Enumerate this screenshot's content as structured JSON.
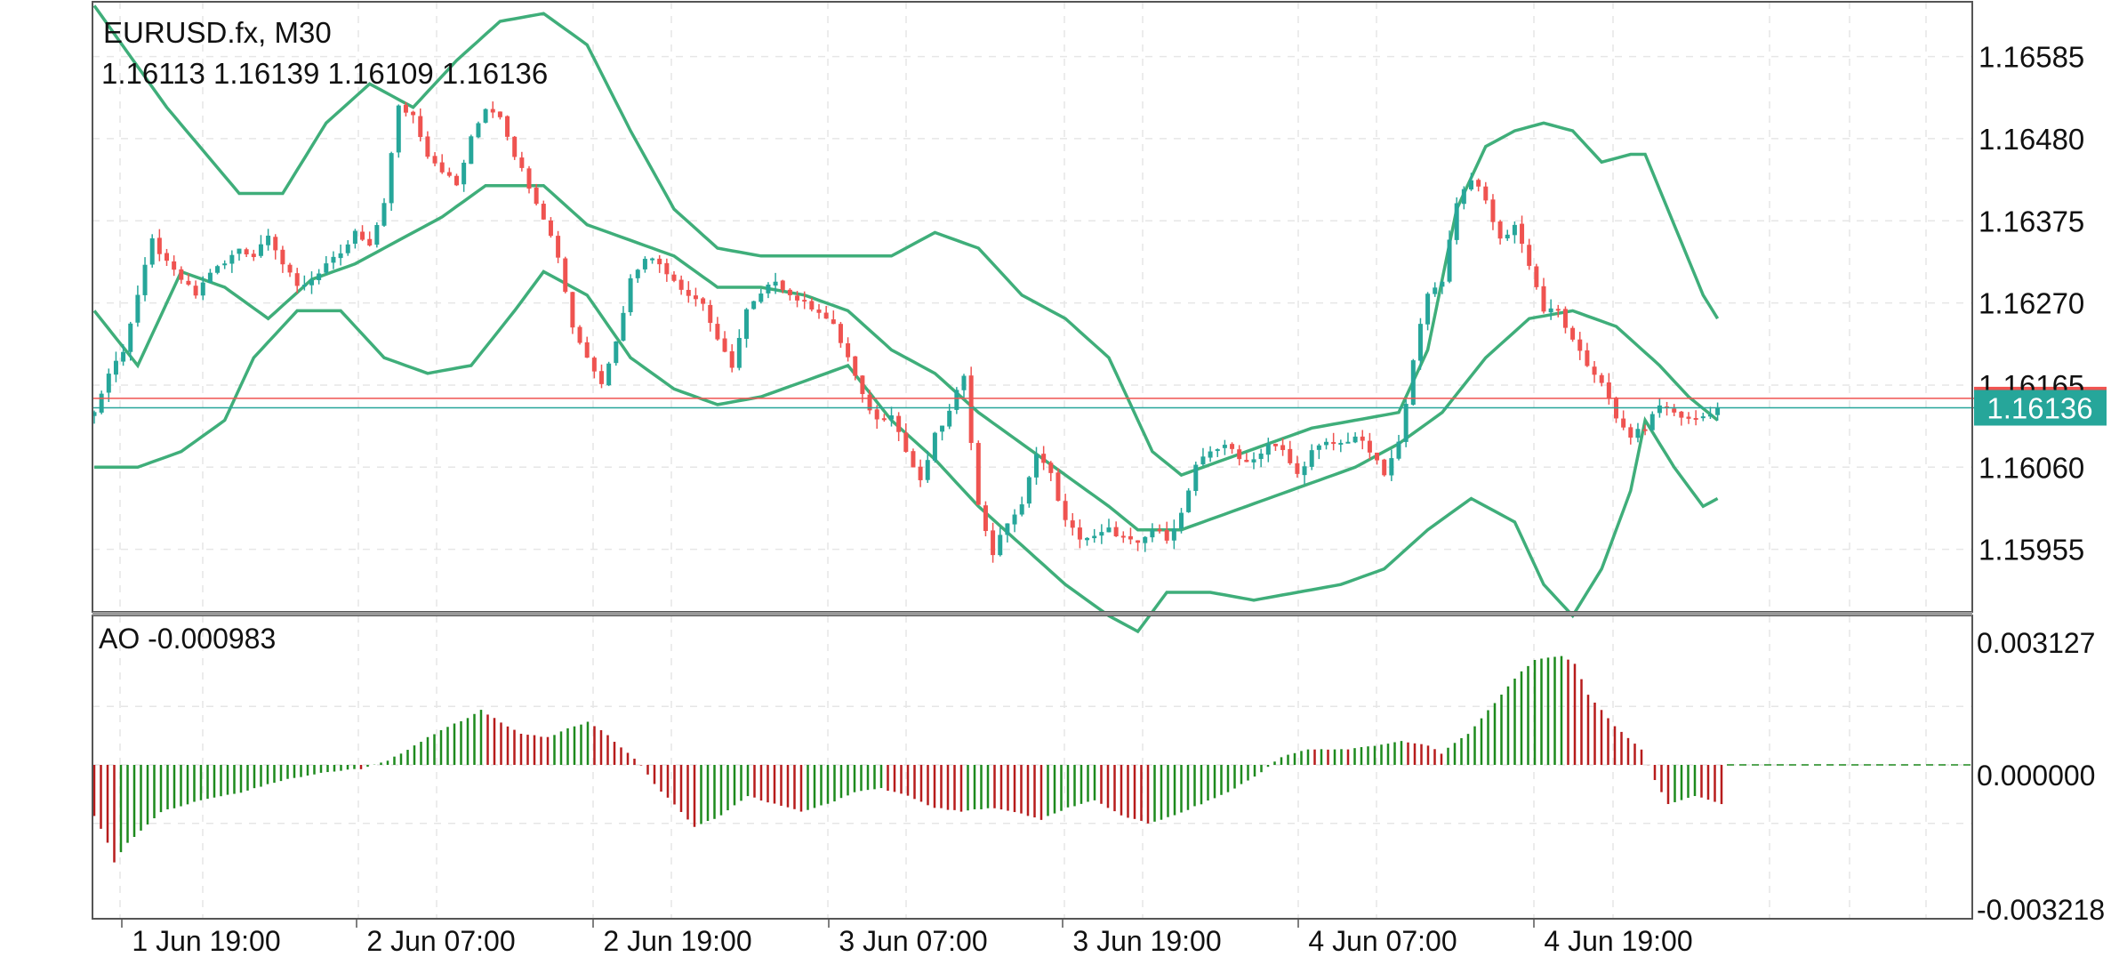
{
  "header": {
    "symbol": "EURUSD.fx, M30",
    "ohlc": "1.16113 1.16139 1.16109 1.16136"
  },
  "ao_header": "AO -0.000983",
  "price_badge": "1.16136",
  "colors": {
    "bull": "#26a69a",
    "bear": "#ef5350",
    "band": "#3fae7a",
    "ao_up": "#1e8a1e",
    "ao_down": "#b71c1c",
    "grid": "#e6e6e6",
    "frame": "#555555",
    "bid_line": "#ef5350",
    "last_line": "#26a69a"
  },
  "chart_data": [
    {
      "type": "candlestick",
      "title": "EURUSD.fx, M30",
      "ylim": [
        1.15875,
        1.16655
      ],
      "y_ticks": [
        "1.16585",
        "1.16480",
        "1.16375",
        "1.16270",
        "1.16165",
        "1.16060",
        "1.15955"
      ],
      "x_ticks": [
        "1 Jun 19:00",
        "2 Jun 07:00",
        "2 Jun 19:00",
        "3 Jun 07:00",
        "3 Jun 19:00",
        "4 Jun 07:00",
        "4 Jun 19:00"
      ],
      "last_price": 1.16136,
      "bid_line": 1.16148,
      "grid": true,
      "ohlc_anchors": [
        [
          0,
          1.1613
        ],
        [
          2,
          1.1618
        ],
        [
          4,
          1.1621
        ],
        [
          6,
          1.1628
        ],
        [
          8,
          1.1635
        ],
        [
          10,
          1.1632
        ],
        [
          12,
          1.163
        ],
        [
          14,
          1.1628
        ],
        [
          16,
          1.1631
        ],
        [
          18,
          1.1632
        ],
        [
          20,
          1.1634
        ],
        [
          22,
          1.1633
        ],
        [
          24,
          1.1636
        ],
        [
          26,
          1.1632
        ],
        [
          28,
          1.1629
        ],
        [
          30,
          1.163
        ],
        [
          32,
          1.1632
        ],
        [
          34,
          1.1633
        ],
        [
          36,
          1.1636
        ],
        [
          38,
          1.1634
        ],
        [
          40,
          1.164
        ],
        [
          42,
          1.1652
        ],
        [
          44,
          1.1651
        ],
        [
          46,
          1.1646
        ],
        [
          48,
          1.1644
        ],
        [
          50,
          1.1642
        ],
        [
          52,
          1.1648
        ],
        [
          54,
          1.1652
        ],
        [
          56,
          1.1651
        ],
        [
          58,
          1.1646
        ],
        [
          60,
          1.1642
        ],
        [
          62,
          1.1638
        ],
        [
          64,
          1.1633
        ],
        [
          66,
          1.1624
        ],
        [
          68,
          1.162
        ],
        [
          70,
          1.1617
        ],
        [
          72,
          1.1622
        ],
        [
          74,
          1.163
        ],
        [
          76,
          1.1633
        ],
        [
          78,
          1.1632
        ],
        [
          80,
          1.163
        ],
        [
          82,
          1.1628
        ],
        [
          84,
          1.1627
        ],
        [
          86,
          1.1622
        ],
        [
          88,
          1.1619
        ],
        [
          90,
          1.1626
        ],
        [
          92,
          1.1628
        ],
        [
          94,
          1.163
        ],
        [
          96,
          1.1628
        ],
        [
          98,
          1.1627
        ],
        [
          100,
          1.1626
        ],
        [
          102,
          1.1624
        ],
        [
          104,
          1.162
        ],
        [
          106,
          1.1615
        ],
        [
          108,
          1.1612
        ],
        [
          110,
          1.1613
        ],
        [
          112,
          1.1608
        ],
        [
          114,
          1.1604
        ],
        [
          116,
          1.161
        ],
        [
          118,
          1.1613
        ],
        [
          120,
          1.1618
        ],
        [
          122,
          1.1601
        ],
        [
          124,
          1.1595
        ],
        [
          126,
          1.1599
        ],
        [
          128,
          1.1601
        ],
        [
          130,
          1.1608
        ],
        [
          132,
          1.1605
        ],
        [
          134,
          1.1599
        ],
        [
          136,
          1.1597
        ],
        [
          138,
          1.1597
        ],
        [
          140,
          1.1598
        ],
        [
          142,
          1.1597
        ],
        [
          144,
          1.1596
        ],
        [
          146,
          1.1598
        ],
        [
          148,
          1.1597
        ],
        [
          150,
          1.16
        ],
        [
          152,
          1.1606
        ],
        [
          154,
          1.1608
        ],
        [
          156,
          1.1609
        ],
        [
          158,
          1.1607
        ],
        [
          160,
          1.1607
        ],
        [
          162,
          1.1609
        ],
        [
          164,
          1.1608
        ],
        [
          166,
          1.1605
        ],
        [
          168,
          1.1608
        ],
        [
          170,
          1.1609
        ],
        [
          172,
          1.1609
        ],
        [
          174,
          1.161
        ],
        [
          176,
          1.1608
        ],
        [
          178,
          1.1605
        ],
        [
          180,
          1.1609
        ],
        [
          182,
          1.162
        ],
        [
          184,
          1.1628
        ],
        [
          186,
          1.163
        ],
        [
          188,
          1.164
        ],
        [
          190,
          1.1643
        ],
        [
          192,
          1.164
        ],
        [
          194,
          1.1635
        ],
        [
          196,
          1.1637
        ],
        [
          198,
          1.1632
        ],
        [
          200,
          1.1626
        ],
        [
          202,
          1.1626
        ],
        [
          204,
          1.1622
        ],
        [
          206,
          1.1619
        ],
        [
          208,
          1.1617
        ],
        [
          210,
          1.1612
        ],
        [
          212,
          1.161
        ],
        [
          214,
          1.1611
        ],
        [
          216,
          1.1614
        ],
        [
          218,
          1.1613
        ],
        [
          220,
          1.1612
        ],
        [
          222,
          1.16125
        ],
        [
          224,
          1.16136
        ]
      ],
      "bands": {
        "upper": [
          [
            0,
            1.1665
          ],
          [
            10,
            1.1652
          ],
          [
            20,
            1.1641
          ],
          [
            26,
            1.1641
          ],
          [
            32,
            1.165
          ],
          [
            38,
            1.1655
          ],
          [
            44,
            1.1652
          ],
          [
            50,
            1.1658
          ],
          [
            56,
            1.1663
          ],
          [
            62,
            1.1664
          ],
          [
            68,
            1.166
          ],
          [
            74,
            1.1649
          ],
          [
            80,
            1.1639
          ],
          [
            86,
            1.1634
          ],
          [
            92,
            1.1633
          ],
          [
            98,
            1.1633
          ],
          [
            104,
            1.1633
          ],
          [
            110,
            1.1633
          ],
          [
            116,
            1.1636
          ],
          [
            122,
            1.1634
          ],
          [
            128,
            1.1628
          ],
          [
            134,
            1.1625
          ],
          [
            140,
            1.162
          ],
          [
            146,
            1.1608
          ],
          [
            150,
            1.1605
          ],
          [
            156,
            1.1607
          ],
          [
            162,
            1.1609
          ],
          [
            168,
            1.1611
          ],
          [
            174,
            1.1612
          ],
          [
            180,
            1.1613
          ],
          [
            184,
            1.1621
          ],
          [
            188,
            1.1639
          ],
          [
            192,
            1.1647
          ],
          [
            196,
            1.1649
          ],
          [
            200,
            1.165
          ],
          [
            204,
            1.1649
          ],
          [
            208,
            1.1645
          ],
          [
            212,
            1.1646
          ],
          [
            214,
            1.1646
          ],
          [
            218,
            1.1637
          ],
          [
            222,
            1.1628
          ],
          [
            224,
            1.1625
          ]
        ],
        "middle": [
          [
            0,
            1.1626
          ],
          [
            6,
            1.1619
          ],
          [
            12,
            1.1631
          ],
          [
            18,
            1.1629
          ],
          [
            24,
            1.1625
          ],
          [
            30,
            1.163
          ],
          [
            36,
            1.1632
          ],
          [
            42,
            1.1635
          ],
          [
            48,
            1.1638
          ],
          [
            54,
            1.1642
          ],
          [
            58,
            1.1642
          ],
          [
            62,
            1.1642
          ],
          [
            68,
            1.1637
          ],
          [
            74,
            1.1635
          ],
          [
            80,
            1.1633
          ],
          [
            86,
            1.1629
          ],
          [
            92,
            1.1629
          ],
          [
            98,
            1.1628
          ],
          [
            104,
            1.1626
          ],
          [
            110,
            1.1621
          ],
          [
            116,
            1.1618
          ],
          [
            122,
            1.1613
          ],
          [
            128,
            1.1609
          ],
          [
            134,
            1.1605
          ],
          [
            140,
            1.1601
          ],
          [
            144,
            1.1598
          ],
          [
            150,
            1.1598
          ],
          [
            156,
            1.16
          ],
          [
            162,
            1.1602
          ],
          [
            168,
            1.1604
          ],
          [
            174,
            1.1606
          ],
          [
            180,
            1.1609
          ],
          [
            186,
            1.1613
          ],
          [
            192,
            1.162
          ],
          [
            198,
            1.1625
          ],
          [
            204,
            1.1626
          ],
          [
            210,
            1.1624
          ],
          [
            216,
            1.1619
          ],
          [
            220,
            1.1615
          ],
          [
            224,
            1.1612
          ]
        ],
        "lower": [
          [
            0,
            1.1606
          ],
          [
            6,
            1.1606
          ],
          [
            12,
            1.1608
          ],
          [
            18,
            1.1612
          ],
          [
            22,
            1.162
          ],
          [
            28,
            1.1626
          ],
          [
            34,
            1.1626
          ],
          [
            40,
            1.162
          ],
          [
            46,
            1.1618
          ],
          [
            52,
            1.1619
          ],
          [
            58,
            1.1626
          ],
          [
            62,
            1.1631
          ],
          [
            68,
            1.1628
          ],
          [
            74,
            1.162
          ],
          [
            80,
            1.1616
          ],
          [
            86,
            1.1614
          ],
          [
            92,
            1.1615
          ],
          [
            98,
            1.1617
          ],
          [
            104,
            1.1619
          ],
          [
            110,
            1.1612
          ],
          [
            116,
            1.1607
          ],
          [
            122,
            1.1601
          ],
          [
            128,
            1.1596
          ],
          [
            134,
            1.1591
          ],
          [
            140,
            1.1587
          ],
          [
            144,
            1.1585
          ],
          [
            148,
            1.159
          ],
          [
            154,
            1.159
          ],
          [
            160,
            1.1589
          ],
          [
            166,
            1.159
          ],
          [
            172,
            1.1591
          ],
          [
            178,
            1.1593
          ],
          [
            184,
            1.1598
          ],
          [
            190,
            1.1602
          ],
          [
            196,
            1.1599
          ],
          [
            200,
            1.1591
          ],
          [
            204,
            1.1587
          ],
          [
            208,
            1.1593
          ],
          [
            212,
            1.1603
          ],
          [
            214,
            1.1612
          ],
          [
            218,
            1.1606
          ],
          [
            222,
            1.1601
          ],
          [
            224,
            1.1602
          ]
        ]
      }
    },
    {
      "type": "bar",
      "title": "AO -0.000983",
      "ylim": [
        -0.003218,
        0.003127
      ],
      "y_ticks": [
        "0.003127",
        "0.000000",
        "-0.003218"
      ],
      "grid": true,
      "value_anchors": [
        [
          0,
          -0.0013
        ],
        [
          2,
          -0.002
        ],
        [
          3,
          -0.0025
        ],
        [
          5,
          -0.002
        ],
        [
          10,
          -0.0012
        ],
        [
          16,
          -0.0009
        ],
        [
          22,
          -0.0007
        ],
        [
          28,
          -0.0004
        ],
        [
          34,
          -0.0002
        ],
        [
          40,
          -0.0001
        ],
        [
          44,
          0.0001
        ],
        [
          48,
          0.0005
        ],
        [
          52,
          0.0009
        ],
        [
          56,
          0.0012
        ],
        [
          58,
          0.0014
        ],
        [
          60,
          0.0012
        ],
        [
          64,
          0.0008
        ],
        [
          68,
          0.0007
        ],
        [
          72,
          0.001
        ],
        [
          74,
          0.0011
        ],
        [
          76,
          0.0009
        ],
        [
          80,
          0.0003
        ],
        [
          82,
          0.0
        ],
        [
          84,
          -0.0005
        ],
        [
          88,
          -0.0012
        ],
        [
          90,
          -0.0016
        ],
        [
          94,
          -0.0013
        ],
        [
          98,
          -0.0008
        ],
        [
          102,
          -0.001
        ],
        [
          106,
          -0.0012
        ],
        [
          110,
          -0.001
        ],
        [
          114,
          -0.0007
        ],
        [
          118,
          -0.0006
        ],
        [
          122,
          -0.0008
        ],
        [
          126,
          -0.0011
        ],
        [
          130,
          -0.0012
        ],
        [
          134,
          -0.0011
        ],
        [
          138,
          -0.0012
        ],
        [
          142,
          -0.0014
        ],
        [
          146,
          -0.0011
        ],
        [
          150,
          -0.0009
        ],
        [
          154,
          -0.0013
        ],
        [
          158,
          -0.0015
        ],
        [
          162,
          -0.0013
        ],
        [
          166,
          -0.001
        ],
        [
          170,
          -0.0007
        ],
        [
          174,
          -0.0003
        ],
        [
          178,
          0.0002
        ],
        [
          182,
          0.0004
        ],
        [
          188,
          0.0004
        ],
        [
          192,
          0.0005
        ],
        [
          196,
          0.0006
        ],
        [
          200,
          0.0005
        ],
        [
          202,
          0.0003
        ],
        [
          206,
          0.0008
        ],
        [
          210,
          0.0016
        ],
        [
          214,
          0.0024
        ],
        [
          216,
          0.0027
        ],
        [
          220,
          0.0028
        ],
        [
          222,
          0.0026
        ],
        [
          224,
          0.0018
        ],
        [
          228,
          0.001
        ],
        [
          232,
          0.0004
        ],
        [
          234,
          -0.0004
        ],
        [
          236,
          -0.001
        ],
        [
          240,
          -0.0008
        ],
        [
          244,
          -0.001
        ]
      ]
    }
  ]
}
